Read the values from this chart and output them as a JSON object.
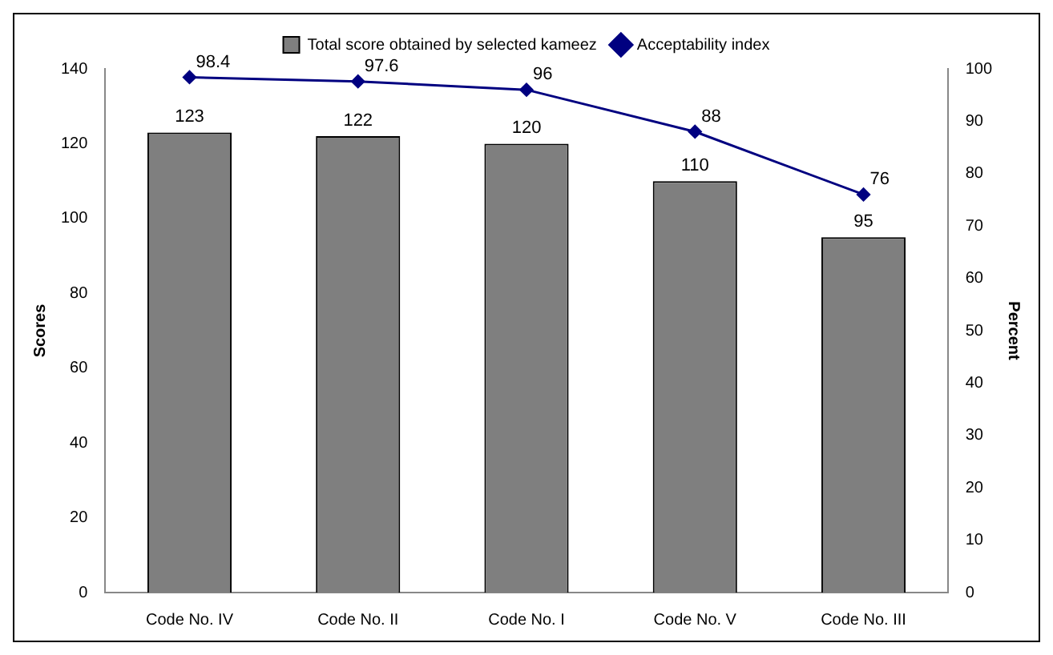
{
  "chart_data": {
    "type": "bar",
    "categories": [
      "Code No. IV",
      "Code No. II",
      "Code No. I",
      "Code No. V",
      "Code No. III"
    ],
    "series": [
      {
        "name": "Total score obtained by selected kameez",
        "color": "#7f7f7f",
        "values": [
          123,
          122,
          120,
          110,
          95
        ]
      },
      {
        "name": "Acceptability index",
        "type": "line",
        "axis": "y2",
        "color": "#000080",
        "values": [
          98.4,
          97.6,
          96,
          88,
          76
        ]
      }
    ],
    "ylabel": "Scores",
    "y2label": "Percent",
    "ylim": [
      0,
      140
    ],
    "yticks": [
      0,
      20,
      40,
      60,
      80,
      100,
      120,
      140
    ],
    "y2lim": [
      0,
      100
    ],
    "y2ticks": [
      0,
      10,
      20,
      30,
      40,
      50,
      60,
      70,
      80,
      90,
      100
    ],
    "grid": false,
    "legend": "top",
    "marker": "diamond",
    "line_style": "solid",
    "data_labels": true
  }
}
